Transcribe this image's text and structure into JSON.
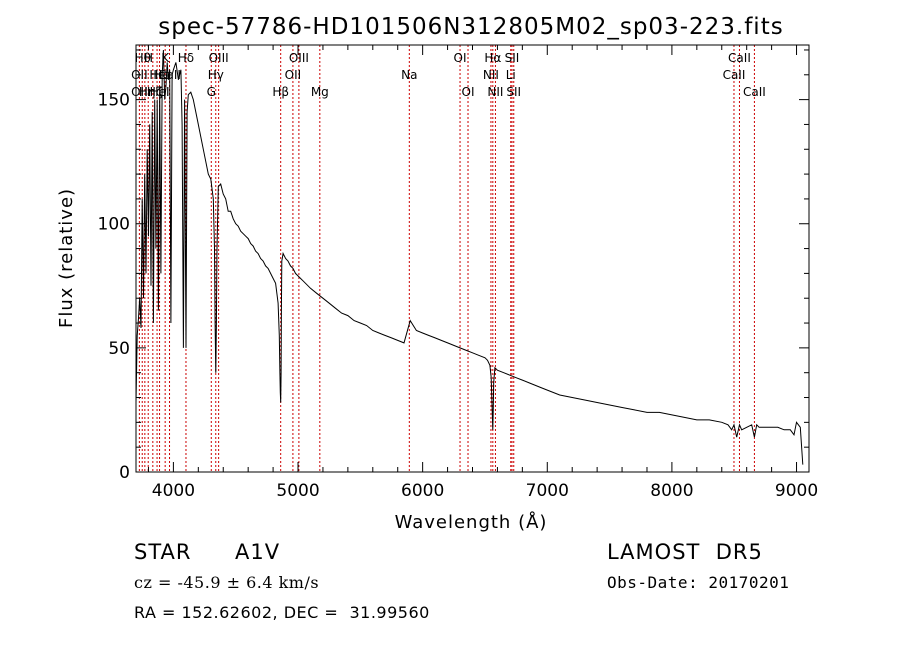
{
  "chart_data": {
    "type": "line",
    "title": "spec-57786-HD101506N312805M02_sp03-223.fits",
    "xlabel": "Wavelength (Å)",
    "ylabel": "Flux (relative)",
    "xlim": [
      3700,
      9100
    ],
    "ylim": [
      0,
      172
    ],
    "x_ticks": [
      4000,
      5000,
      6000,
      7000,
      8000,
      9000
    ],
    "y_ticks": [
      0,
      50,
      100,
      150
    ],
    "x_tick_labels": [
      "4000",
      "5000",
      "6000",
      "7000",
      "8000",
      "9000"
    ],
    "y_tick_labels": [
      "0",
      "50",
      "100",
      "150"
    ],
    "grid": false,
    "line_color": "#000000",
    "marker_color": "#cc0000",
    "series": [
      {
        "x": [
          3700,
          3710,
          3720,
          3730,
          3740,
          3750,
          3760,
          3770,
          3780,
          3790,
          3800,
          3810,
          3820,
          3830,
          3840,
          3850,
          3860,
          3870,
          3880,
          3890,
          3900,
          3910,
          3920,
          3930,
          3940,
          3950,
          3960,
          3970,
          3980,
          3990,
          4000,
          4020,
          4040,
          4060,
          4070,
          4080,
          4090,
          4101,
          4110,
          4120,
          4140,
          4160,
          4180,
          4200,
          4220,
          4240,
          4260,
          4280,
          4300,
          4320,
          4330,
          4335,
          4340,
          4345,
          4350,
          4360,
          4380,
          4400,
          4420,
          4440,
          4460,
          4480,
          4500,
          4520,
          4540,
          4560,
          4580,
          4600,
          4620,
          4640,
          4660,
          4680,
          4700,
          4720,
          4740,
          4760,
          4780,
          4800,
          4820,
          4840,
          4850,
          4855,
          4858,
          4861,
          4864,
          4867,
          4870,
          4880,
          4900,
          4920,
          4940,
          4960,
          4980,
          5000,
          5020,
          5040,
          5060,
          5080,
          5100,
          5150,
          5200,
          5250,
          5300,
          5350,
          5400,
          5450,
          5500,
          5550,
          5600,
          5650,
          5700,
          5750,
          5800,
          5850,
          5900,
          5950,
          6000,
          6050,
          6100,
          6150,
          6200,
          6250,
          6300,
          6350,
          6400,
          6450,
          6500,
          6520,
          6540,
          6550,
          6555,
          6560,
          6563,
          6566,
          6570,
          6580,
          6600,
          6650,
          6700,
          6750,
          6800,
          6850,
          6900,
          6950,
          7000,
          7100,
          7200,
          7300,
          7400,
          7500,
          7600,
          7700,
          7800,
          7900,
          8000,
          8100,
          8200,
          8300,
          8400,
          8450,
          8480,
          8498,
          8520,
          8542,
          8560,
          8600,
          8640,
          8662,
          8680,
          8700,
          8750,
          8800,
          8850,
          8900,
          8950,
          8980,
          9000,
          9030,
          9050
        ],
        "y": [
          28,
          55,
          62,
          70,
          58,
          110,
          70,
          120,
          80,
          130,
          95,
          140,
          75,
          145,
          60,
          150,
          90,
          150,
          65,
          155,
          80,
          160,
          170,
          150,
          155,
          165,
          158,
          162,
          60,
          160,
          162,
          165,
          158,
          162,
          140,
          50,
          150,
          50,
          145,
          152,
          153,
          150,
          145,
          140,
          135,
          130,
          125,
          120,
          118,
          110,
          90,
          60,
          40,
          60,
          90,
          115,
          116,
          112,
          110,
          105,
          105,
          102,
          100,
          99,
          97,
          96,
          95,
          94,
          92,
          91,
          89,
          88,
          86,
          85,
          83,
          82,
          80,
          78,
          76,
          68,
          55,
          40,
          32,
          28,
          40,
          65,
          85,
          88,
          86,
          85,
          83,
          82,
          80,
          79,
          78,
          77,
          76,
          75,
          74,
          72,
          70,
          68,
          66,
          64,
          63,
          61,
          60,
          59,
          57,
          56,
          55,
          54,
          53,
          52,
          61,
          57,
          56,
          55,
          54,
          53,
          52,
          51,
          50,
          49,
          48,
          47,
          46,
          45,
          43,
          38,
          30,
          22,
          17,
          24,
          36,
          42,
          41,
          40,
          39,
          38,
          37,
          36,
          35,
          34,
          33,
          31,
          30,
          29,
          28,
          27,
          26,
          25,
          24,
          24,
          23,
          22,
          21,
          21,
          20,
          19,
          17,
          19,
          14,
          19,
          17,
          18,
          19,
          14,
          19,
          18,
          18,
          18,
          18,
          17,
          17,
          15,
          20,
          18,
          3
        ]
      }
    ],
    "line_markers": [
      {
        "x": 3727,
        "top": "OII"
      },
      {
        "x": 3750,
        "top": "Hθ"
      },
      {
        "x": 3771,
        "top": "Hη"
      },
      {
        "x": 3798,
        "top": "Hζ"
      },
      {
        "x": 3835,
        "top": "Hε"
      },
      {
        "x": 3869,
        "top": "NeIII"
      },
      {
        "x": 3889,
        "top": "HeI"
      },
      {
        "x": 3934,
        "top": "K"
      },
      {
        "x": 3969,
        "top": "H"
      },
      {
        "x": 4101,
        "top": "Hδ"
      },
      {
        "x": 4304,
        "top": "G"
      },
      {
        "x": 4340,
        "top": "Hγ"
      },
      {
        "x": 4363,
        "top": "OIII"
      },
      {
        "x": 4861,
        "top": "Hβ"
      },
      {
        "x": 4959,
        "top": "OIII"
      },
      {
        "x": 5007,
        "top": "OIII"
      },
      {
        "x": 5175,
        "top": "Mg"
      },
      {
        "x": 5893,
        "top": "Na"
      },
      {
        "x": 6300,
        "top": "OI"
      },
      {
        "x": 6364,
        "top": "OI"
      },
      {
        "x": 6548,
        "top": "NII"
      },
      {
        "x": 6563,
        "top": "Hα"
      },
      {
        "x": 6584,
        "top": "NII"
      },
      {
        "x": 6707,
        "top": "Li"
      },
      {
        "x": 6717,
        "top": "SII"
      },
      {
        "x": 6731,
        "top": "SII"
      },
      {
        "x": 8498,
        "top": "CaII"
      },
      {
        "x": 8542,
        "top": "CaII"
      },
      {
        "x": 8662,
        "top": "CaII"
      }
    ],
    "line_labels": [
      {
        "text": "Hθ",
        "x": 3755,
        "row": 0
      },
      {
        "text": "OII",
        "x": 3727,
        "row": 1
      },
      {
        "text": "OII",
        "x": 3727,
        "row": 2
      },
      {
        "text": "H",
        "x": 3800,
        "row": 0
      },
      {
        "text": "Hη",
        "x": 3790,
        "row": 2
      },
      {
        "text": "Hε",
        "x": 3870,
        "row": 1
      },
      {
        "text": "Hζ",
        "x": 3850,
        "row": 2
      },
      {
        "text": "K",
        "x": 3934,
        "row": 0
      },
      {
        "text": "He",
        "x": 3905,
        "row": 1
      },
      {
        "text": "HeI",
        "x": 3889,
        "row": 2
      },
      {
        "text": "Hδ",
        "x": 4101,
        "row": 0
      },
      {
        "text": "CaII",
        "x": 3969,
        "row": 1
      },
      {
        "text": "OIII",
        "x": 4363,
        "row": 0
      },
      {
        "text": "Hγ",
        "x": 4340,
        "row": 1
      },
      {
        "text": "G",
        "x": 4304,
        "row": 2
      },
      {
        "text": "OIII",
        "x": 5007,
        "row": 0
      },
      {
        "text": "OII",
        "x": 4959,
        "row": 1
      },
      {
        "text": "Hβ",
        "x": 4861,
        "row": 2
      },
      {
        "text": "Mg",
        "x": 5175,
        "row": 2
      },
      {
        "text": "Na",
        "x": 5893,
        "row": 1
      },
      {
        "text": "OI",
        "x": 6300,
        "row": 0
      },
      {
        "text": "OI",
        "x": 6364,
        "row": 2
      },
      {
        "text": "Hα",
        "x": 6563,
        "row": 0
      },
      {
        "text": "SII",
        "x": 6717,
        "row": 0
      },
      {
        "text": "NII",
        "x": 6548,
        "row": 1
      },
      {
        "text": "Li",
        "x": 6707,
        "row": 1
      },
      {
        "text": "NII",
        "x": 6584,
        "row": 2
      },
      {
        "text": "SII",
        "x": 6731,
        "row": 2
      },
      {
        "text": "CaII",
        "x": 8542,
        "row": 0
      },
      {
        "text": "CaII",
        "x": 8498,
        "row": 1
      },
      {
        "text": "CaII",
        "x": 8662,
        "row": 2
      }
    ]
  },
  "info": {
    "class_label": "STAR",
    "subclass": "A1V",
    "survey": "LAMOST  DR5",
    "cz": "cz = -45.9 ± 6.4 km/s",
    "obs_date": "Obs-Date: 20170201",
    "coords": "RA = 152.62602, DEC =  31.99560"
  }
}
